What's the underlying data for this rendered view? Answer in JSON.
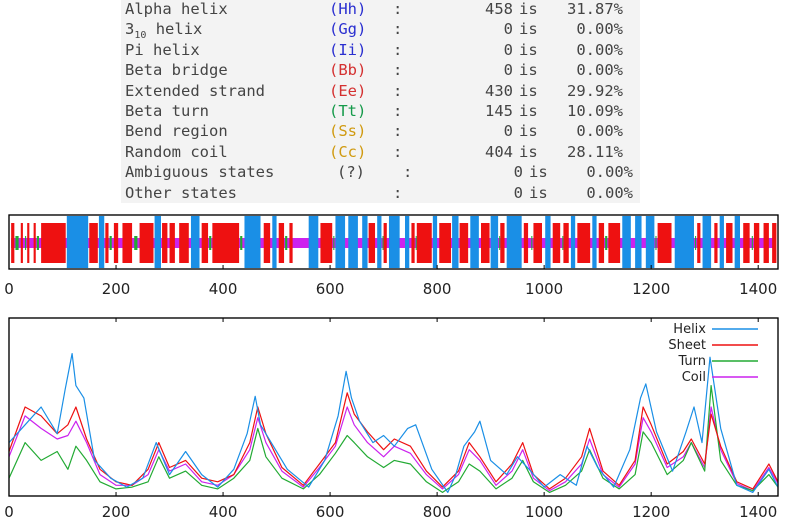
{
  "stats_table": [
    {
      "name": "Alpha helix",
      "code": "(Hh)",
      "count": "458",
      "is": "is",
      "pct": "31.87%",
      "code_color": "#2a2fd0"
    },
    {
      "name": "3",
      "name_sub": "10",
      "name_after": " helix",
      "code": "(Gg)",
      "count": "0",
      "is": "is",
      "pct": "0.00%",
      "code_color": "#2a2fd0"
    },
    {
      "name": "Pi helix",
      "code": "(Ii)",
      "count": "0",
      "is": "is",
      "pct": "0.00%",
      "code_color": "#2a2fd0"
    },
    {
      "name": "Beta bridge",
      "code": "(Bb)",
      "count": "0",
      "is": "is",
      "pct": "0.00%",
      "code_color": "#d43030"
    },
    {
      "name": "Extended strand",
      "code": "(Ee)",
      "count": "430",
      "is": "is",
      "pct": "29.92%",
      "code_color": "#d43030"
    },
    {
      "name": "Beta turn",
      "code": "(Tt)",
      "count": "145",
      "is": "is",
      "pct": "10.09%",
      "code_color": "#159a4a"
    },
    {
      "name": "Bend region",
      "code": "(Ss)",
      "count": "0",
      "is": "is",
      "pct": "0.00%",
      "code_color": "#d09a10"
    },
    {
      "name": "Random coil",
      "code": "(Cc)",
      "count": "404",
      "is": "is",
      "pct": "28.11%",
      "code_color": "#d09a10"
    },
    {
      "name": "Ambiguous states",
      "code": "(?)",
      "count": "0",
      "is": "is",
      "pct": "0.00%",
      "code_color": "#444444"
    },
    {
      "name": "Other states",
      "code": "",
      "count": "0",
      "is": "is",
      "pct": "0.00%",
      "code_color": "#444444"
    }
  ],
  "chart_data": [
    {
      "type": "area",
      "description_kind": "secondary structure track along sequence",
      "xlim": [
        0,
        1437
      ],
      "xticks": [
        "0",
        "200",
        "400",
        "600",
        "800",
        "1000",
        "1200",
        "1400"
      ],
      "tick_values": [
        0,
        200,
        400,
        600,
        800,
        1000,
        1200,
        1400
      ],
      "colors": {
        "helix": "#1a8fe6",
        "sheet": "#ee1111",
        "turn": "#22aa33",
        "coil": "#cc22ee"
      },
      "helix_segments": [
        [
          108,
          148
        ],
        [
          168,
          178
        ],
        [
          272,
          284
        ],
        [
          340,
          356
        ],
        [
          440,
          470
        ],
        [
          492,
          500
        ],
        [
          560,
          578
        ],
        [
          610,
          628
        ],
        [
          634,
          652
        ],
        [
          660,
          670
        ],
        [
          688,
          696
        ],
        [
          710,
          730
        ],
        [
          740,
          748
        ],
        [
          792,
          800
        ],
        [
          828,
          840
        ],
        [
          862,
          878
        ],
        [
          900,
          914
        ],
        [
          930,
          958
        ],
        [
          1002,
          1012
        ],
        [
          1050,
          1058
        ],
        [
          1090,
          1098
        ],
        [
          1146,
          1162
        ],
        [
          1170,
          1182
        ],
        [
          1190,
          1206
        ],
        [
          1244,
          1280
        ],
        [
          1296,
          1312
        ],
        [
          1328,
          1336
        ],
        [
          1356,
          1366
        ]
      ],
      "strand_segments": [
        [
          4,
          10
        ],
        [
          22,
          26
        ],
        [
          34,
          38
        ],
        [
          46,
          50
        ],
        [
          60,
          106
        ],
        [
          150,
          166
        ],
        [
          180,
          186
        ],
        [
          196,
          204
        ],
        [
          212,
          230
        ],
        [
          244,
          270
        ],
        [
          286,
          296
        ],
        [
          300,
          310
        ],
        [
          318,
          336
        ],
        [
          360,
          372
        ],
        [
          380,
          430
        ],
        [
          476,
          488
        ],
        [
          504,
          514
        ],
        [
          524,
          530
        ],
        [
          582,
          604
        ],
        [
          672,
          684
        ],
        [
          700,
          706
        ],
        [
          752,
          758
        ],
        [
          762,
          790
        ],
        [
          804,
          826
        ],
        [
          842,
          858
        ],
        [
          882,
          898
        ],
        [
          918,
          926
        ],
        [
          962,
          970
        ],
        [
          980,
          996
        ],
        [
          1016,
          1030
        ],
        [
          1036,
          1046
        ],
        [
          1062,
          1086
        ],
        [
          1102,
          1112
        ],
        [
          1120,
          1142
        ],
        [
          1212,
          1238
        ],
        [
          1286,
          1292
        ],
        [
          1318,
          1324
        ],
        [
          1340,
          1352
        ],
        [
          1372,
          1384
        ],
        [
          1392,
          1402
        ],
        [
          1410,
          1420
        ],
        [
          1426,
          1434
        ]
      ],
      "turn_segments": [
        [
          12,
          18
        ],
        [
          30,
          32
        ],
        [
          52,
          56
        ],
        [
          188,
          192
        ],
        [
          234,
          240
        ],
        [
          374,
          378
        ],
        [
          432,
          436
        ],
        [
          516,
          520
        ],
        [
          606,
          608
        ],
        [
          698,
          699
        ],
        [
          760,
          761
        ],
        [
          916,
          917
        ],
        [
          976,
          978
        ],
        [
          1034,
          1035
        ],
        [
          1114,
          1118
        ],
        [
          1208,
          1210
        ],
        [
          1282,
          1284
        ],
        [
          1388,
          1390
        ]
      ]
    },
    {
      "type": "line",
      "xlim": [
        0,
        1437
      ],
      "ylim": [
        0,
        1
      ],
      "xticks": [
        "0",
        "200",
        "400",
        "600",
        "800",
        "1000",
        "1200",
        "1400"
      ],
      "tick_values": [
        0,
        200,
        400,
        600,
        800,
        1000,
        1200,
        1400
      ],
      "grid": false,
      "legend": "top-right",
      "series": [
        {
          "name": "Helix",
          "color": "#1a8fe6",
          "x": [
            0,
            30,
            60,
            90,
            105,
            118,
            125,
            140,
            160,
            190,
            220,
            250,
            275,
            300,
            330,
            360,
            390,
            420,
            445,
            460,
            470,
            490,
            520,
            560,
            590,
            615,
            630,
            640,
            655,
            680,
            700,
            720,
            745,
            760,
            790,
            820,
            835,
            850,
            870,
            880,
            900,
            930,
            950,
            975,
            1000,
            1030,
            1060,
            1080,
            1100,
            1130,
            1160,
            1180,
            1190,
            1210,
            1240,
            1265,
            1280,
            1295,
            1310,
            1330,
            1360,
            1390,
            1420,
            1437
          ],
          "y": [
            0.3,
            0.4,
            0.5,
            0.35,
            0.6,
            0.8,
            0.62,
            0.55,
            0.2,
            0.1,
            0.05,
            0.1,
            0.3,
            0.12,
            0.25,
            0.12,
            0.05,
            0.15,
            0.35,
            0.56,
            0.4,
            0.3,
            0.15,
            0.05,
            0.2,
            0.45,
            0.7,
            0.55,
            0.42,
            0.3,
            0.34,
            0.28,
            0.38,
            0.4,
            0.15,
            0.02,
            0.12,
            0.28,
            0.36,
            0.42,
            0.2,
            0.12,
            0.22,
            0.14,
            0.05,
            0.12,
            0.06,
            0.28,
            0.16,
            0.05,
            0.26,
            0.55,
            0.63,
            0.36,
            0.14,
            0.36,
            0.5,
            0.3,
            0.78,
            0.38,
            0.06,
            0.02,
            0.15,
            0.05
          ]
        },
        {
          "name": "Sheet",
          "color": "#ee1111",
          "x": [
            0,
            30,
            60,
            90,
            110,
            125,
            145,
            170,
            200,
            230,
            260,
            280,
            300,
            330,
            360,
            390,
            420,
            450,
            465,
            480,
            510,
            550,
            580,
            610,
            632,
            645,
            670,
            700,
            720,
            750,
            780,
            810,
            840,
            860,
            880,
            910,
            940,
            960,
            980,
            1010,
            1040,
            1070,
            1085,
            1110,
            1140,
            1170,
            1185,
            1200,
            1230,
            1260,
            1275,
            1300,
            1312,
            1330,
            1360,
            1390,
            1420,
            1437
          ],
          "y": [
            0.25,
            0.5,
            0.45,
            0.35,
            0.4,
            0.5,
            0.32,
            0.15,
            0.08,
            0.06,
            0.15,
            0.3,
            0.16,
            0.2,
            0.1,
            0.08,
            0.12,
            0.3,
            0.5,
            0.35,
            0.16,
            0.06,
            0.18,
            0.3,
            0.58,
            0.46,
            0.36,
            0.26,
            0.32,
            0.28,
            0.14,
            0.05,
            0.14,
            0.3,
            0.22,
            0.08,
            0.18,
            0.3,
            0.12,
            0.04,
            0.1,
            0.22,
            0.38,
            0.14,
            0.06,
            0.2,
            0.5,
            0.4,
            0.18,
            0.25,
            0.32,
            0.18,
            0.46,
            0.28,
            0.08,
            0.04,
            0.18,
            0.08
          ]
        },
        {
          "name": "Turn",
          "color": "#22aa33",
          "x": [
            0,
            30,
            60,
            90,
            110,
            125,
            145,
            170,
            200,
            230,
            260,
            280,
            300,
            330,
            360,
            390,
            420,
            450,
            465,
            480,
            510,
            550,
            580,
            610,
            632,
            645,
            670,
            700,
            720,
            750,
            780,
            810,
            840,
            860,
            880,
            910,
            940,
            960,
            980,
            1010,
            1040,
            1070,
            1085,
            1110,
            1140,
            1170,
            1185,
            1200,
            1230,
            1260,
            1275,
            1300,
            1312,
            1330,
            1360,
            1390,
            1420,
            1437
          ],
          "y": [
            0.1,
            0.3,
            0.2,
            0.25,
            0.15,
            0.28,
            0.2,
            0.08,
            0.04,
            0.05,
            0.08,
            0.22,
            0.1,
            0.14,
            0.06,
            0.04,
            0.1,
            0.2,
            0.38,
            0.22,
            0.1,
            0.04,
            0.12,
            0.24,
            0.34,
            0.3,
            0.22,
            0.16,
            0.2,
            0.18,
            0.08,
            0.02,
            0.08,
            0.18,
            0.14,
            0.04,
            0.1,
            0.2,
            0.08,
            0.02,
            0.06,
            0.14,
            0.26,
            0.1,
            0.04,
            0.12,
            0.36,
            0.3,
            0.12,
            0.2,
            0.3,
            0.14,
            0.62,
            0.2,
            0.06,
            0.03,
            0.12,
            0.05
          ]
        },
        {
          "name": "Coil",
          "color": "#cc22ee",
          "x": [
            0,
            30,
            60,
            90,
            110,
            125,
            145,
            170,
            200,
            230,
            260,
            280,
            300,
            330,
            360,
            390,
            420,
            450,
            465,
            480,
            510,
            550,
            580,
            610,
            632,
            645,
            670,
            700,
            720,
            750,
            780,
            810,
            840,
            860,
            880,
            910,
            940,
            960,
            980,
            1010,
            1040,
            1070,
            1085,
            1110,
            1140,
            1170,
            1185,
            1200,
            1230,
            1260,
            1275,
            1300,
            1312,
            1330,
            1360,
            1390,
            1420,
            1437
          ],
          "y": [
            0.22,
            0.45,
            0.38,
            0.32,
            0.34,
            0.42,
            0.3,
            0.12,
            0.06,
            0.06,
            0.12,
            0.26,
            0.14,
            0.18,
            0.08,
            0.06,
            0.12,
            0.26,
            0.44,
            0.3,
            0.14,
            0.05,
            0.16,
            0.28,
            0.5,
            0.4,
            0.3,
            0.22,
            0.28,
            0.24,
            0.12,
            0.04,
            0.12,
            0.26,
            0.2,
            0.06,
            0.14,
            0.26,
            0.1,
            0.03,
            0.08,
            0.18,
            0.32,
            0.12,
            0.05,
            0.18,
            0.44,
            0.36,
            0.16,
            0.22,
            0.3,
            0.16,
            0.5,
            0.26,
            0.07,
            0.03,
            0.16,
            0.07
          ]
        }
      ]
    }
  ]
}
